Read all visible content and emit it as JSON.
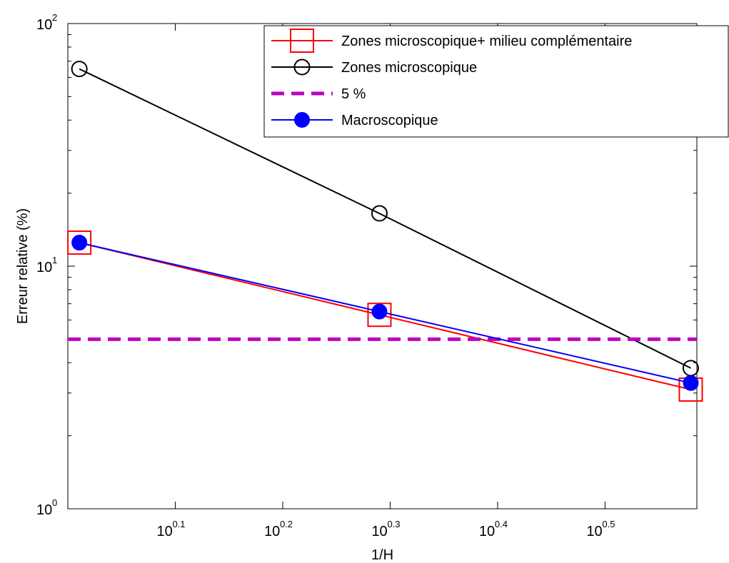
{
  "chart_data": {
    "type": "line",
    "xscale": "log",
    "yscale": "log",
    "xlabel": "1/H",
    "ylabel": "Erreur relative (%)",
    "xlim": [
      1.0,
      3.85
    ],
    "ylim": [
      1,
      100
    ],
    "xticks": [
      {
        "base": "10",
        "exp": "0.1",
        "value": 1.2589
      },
      {
        "base": "10",
        "exp": "0.2",
        "value": 1.5849
      },
      {
        "base": "10",
        "exp": "0.3",
        "value": 1.9953
      },
      {
        "base": "10",
        "exp": "0.4",
        "value": 2.5119
      },
      {
        "base": "10",
        "exp": "0.5",
        "value": 3.1623
      }
    ],
    "yticks": [
      {
        "base": "10",
        "exp": "0",
        "value": 1
      },
      {
        "base": "10",
        "exp": "1",
        "value": 10
      },
      {
        "base": "10",
        "exp": "2",
        "value": 100
      }
    ],
    "grid": false,
    "legend_position": "top-right",
    "series": [
      {
        "name": "Zones microscopique+ milieu complémentaire",
        "color": "#ff0000",
        "marker": "square",
        "x": [
          1.025,
          1.95,
          3.8
        ],
        "y": [
          12.5,
          6.3,
          3.1
        ]
      },
      {
        "name": "Zones microscopique",
        "color": "#000000",
        "marker": "circle-open",
        "x": [
          1.025,
          1.95,
          3.8
        ],
        "y": [
          65,
          16.5,
          3.8
        ]
      },
      {
        "name": "5 %",
        "color": "#bf00bf",
        "marker": "none",
        "dashed": true,
        "x": [
          1.0,
          3.85
        ],
        "y": [
          5,
          5
        ]
      },
      {
        "name": "Macroscopique",
        "color": "#0000ff",
        "marker": "circle-filled",
        "x": [
          1.025,
          1.95,
          3.8
        ],
        "y": [
          12.5,
          6.5,
          3.3
        ]
      }
    ]
  }
}
